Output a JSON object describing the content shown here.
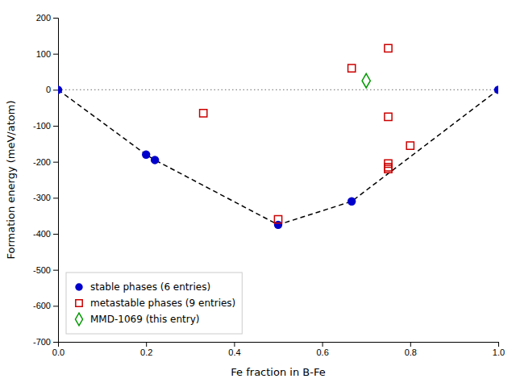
{
  "chart_data": {
    "type": "scatter",
    "xlabel": "Fe fraction in B-Fe",
    "ylabel": "Formation energy (meV/atom)",
    "xlim": [
      0.0,
      1.0
    ],
    "ylim": [
      -700,
      200
    ],
    "xticks": [
      {
        "value": 0.0,
        "label": "0.0"
      },
      0.2,
      0.4,
      0.6,
      0.8,
      {
        "value": 1.0,
        "label": "1.0"
      }
    ],
    "yticks": [
      -700,
      -600,
      -500,
      -400,
      -300,
      -200,
      -100,
      0,
      100,
      200
    ],
    "grid": false,
    "legend": "lower left",
    "hlines": [
      {
        "value": 0,
        "color": "#888888",
        "line_style": "dotted"
      }
    ],
    "series": [
      {
        "type": "line",
        "color": "black",
        "line_style": "dashed",
        "x": [
          0.0,
          0.2,
          0.22,
          0.5,
          0.667,
          1.0
        ],
        "values": [
          0,
          -180,
          -195,
          -375,
          -310,
          0
        ]
      },
      {
        "type": "scatter",
        "name": "stable phases (6 entries)",
        "color": "#0000cc",
        "marker": "circle",
        "x": [
          0.0,
          0.2,
          0.22,
          0.5,
          0.667,
          1.0
        ],
        "values": [
          0,
          -180,
          -195,
          -375,
          -310,
          0
        ]
      },
      {
        "type": "scatter",
        "name": "metastable phases (9 entries)",
        "color": "#cc0000",
        "marker": "open-square",
        "x": [
          0.5,
          0.33,
          0.667,
          0.75,
          0.75,
          0.75,
          0.75,
          0.75,
          0.8
        ],
        "values": [
          -360,
          -65,
          60,
          115,
          -75,
          -205,
          -215,
          -220,
          -155
        ]
      },
      {
        "type": "scatter",
        "name": "MMD-1069 (this entry)",
        "color": "#009900",
        "marker": "open-diamond",
        "x": [
          0.7
        ],
        "values": [
          25
        ]
      }
    ]
  }
}
